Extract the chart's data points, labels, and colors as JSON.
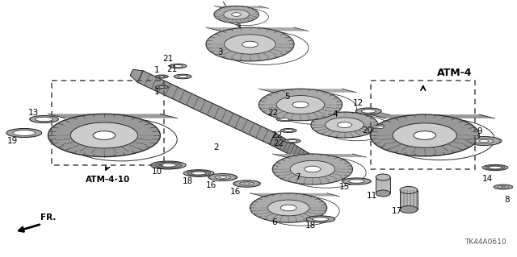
{
  "bg_color": "#ffffff",
  "diagram_code": "TK44A0610",
  "atm4_label": "ATM-4",
  "atm4_10_label": "ATM-4-10",
  "fr_label": "FR.",
  "lc": "#1a1a1a",
  "gc": "#2a2a2a",
  "gf_dark": "#888888",
  "gf_mid": "#aaaaaa",
  "gf_light": "#cccccc",
  "gf_white": "#ffffff"
}
